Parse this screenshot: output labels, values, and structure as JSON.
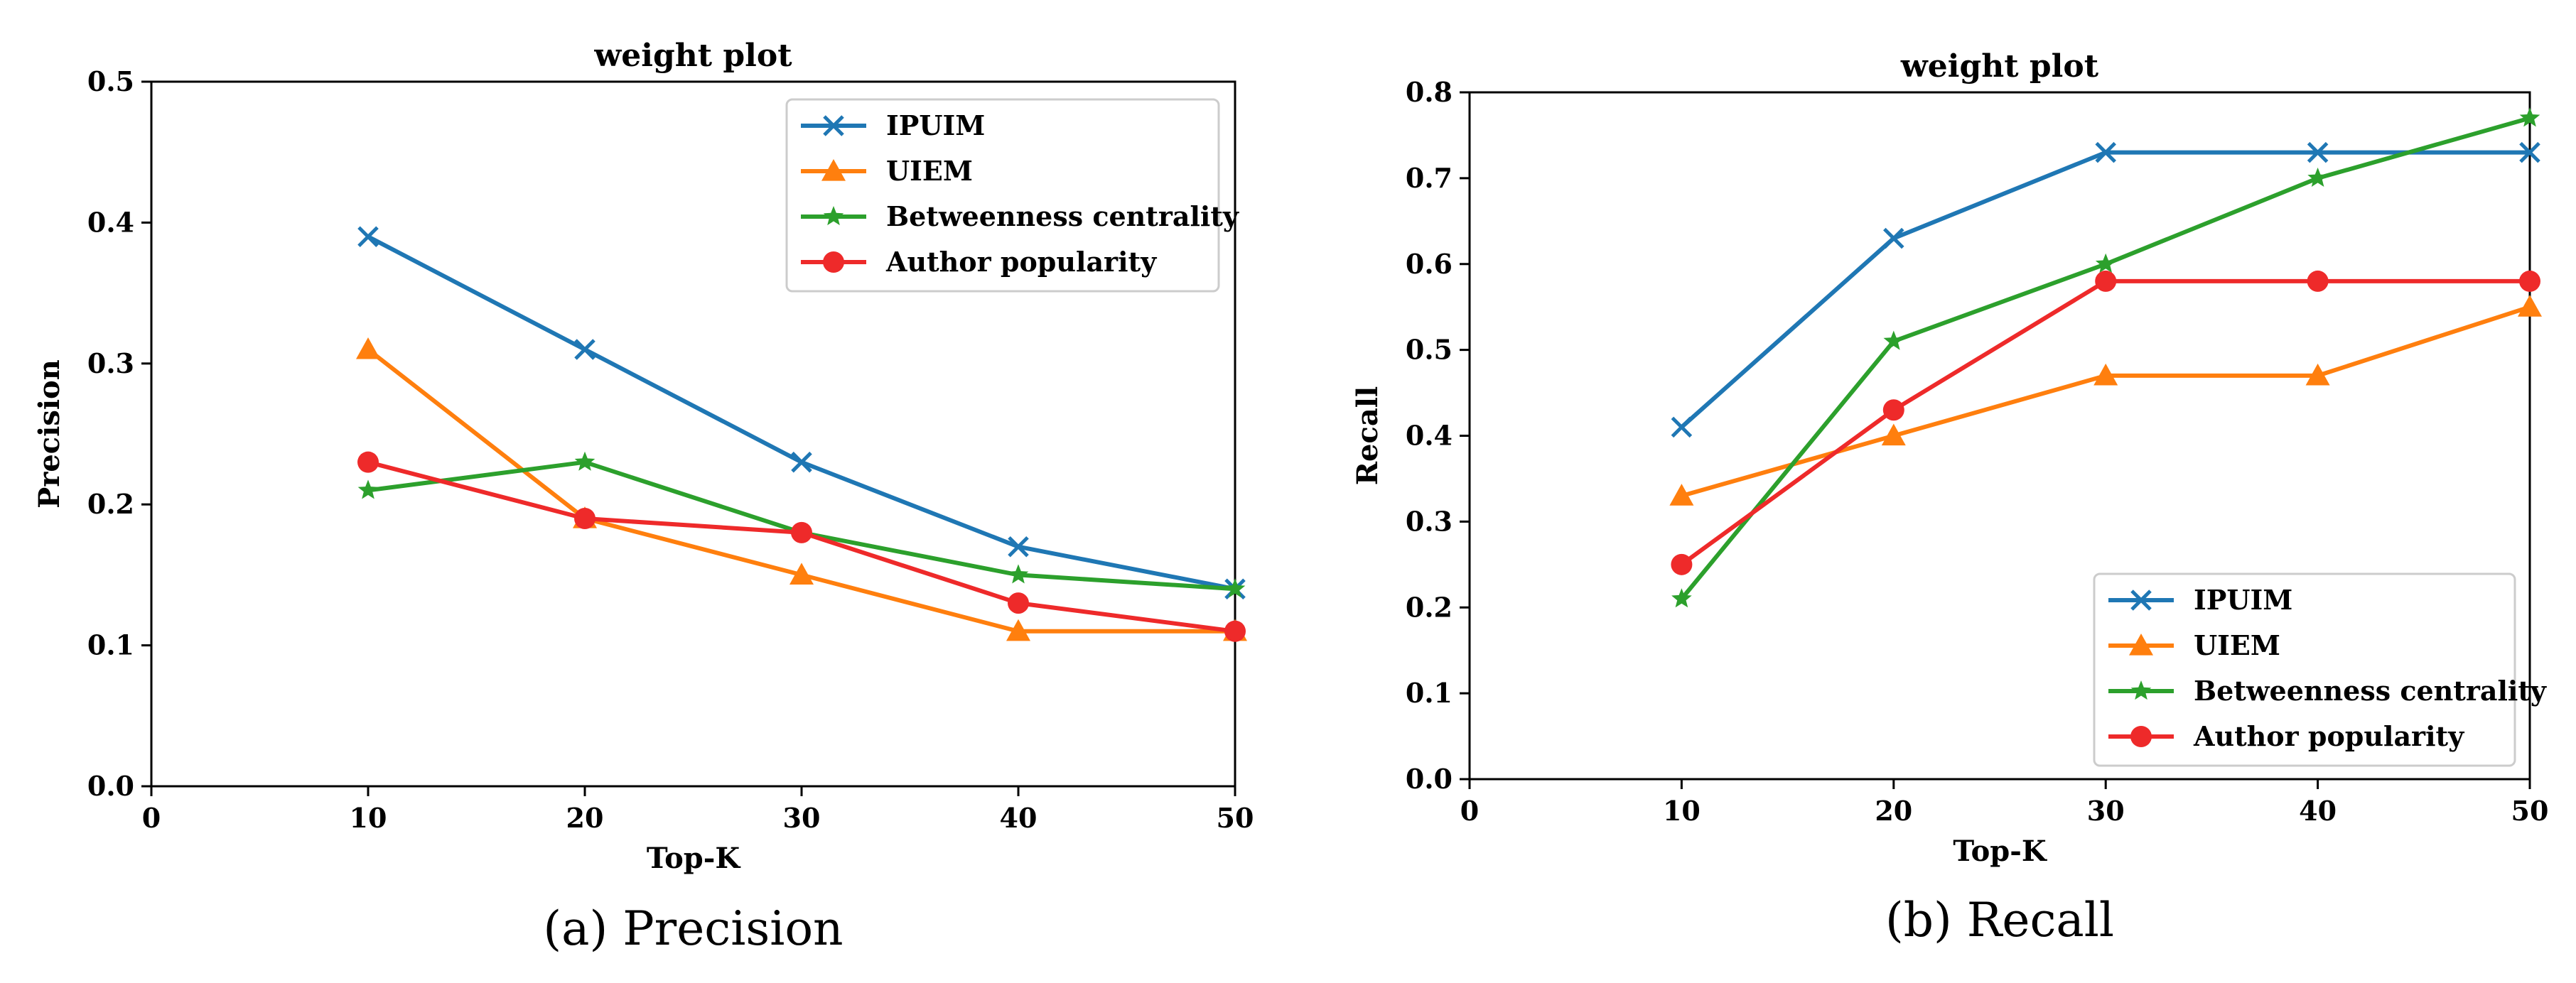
{
  "chart_data": [
    {
      "type": "line",
      "title": "weight plot",
      "xlabel": "Top-K",
      "ylabel": "Precision",
      "caption": "(a) Precision",
      "xlim": [
        0,
        50
      ],
      "ylim": [
        0,
        0.5
      ],
      "x_ticks": [
        0,
        10,
        20,
        30,
        40,
        50
      ],
      "y_ticks": [
        0.0,
        0.1,
        0.2,
        0.3,
        0.4,
        0.5
      ],
      "x_tick_labels": [
        "0",
        "10",
        "20",
        "30",
        "40",
        "50"
      ],
      "y_tick_labels": [
        "0.0",
        "0.1",
        "0.2",
        "0.3",
        "0.4",
        "0.5"
      ],
      "grid": false,
      "legend_position": "top-right",
      "x": [
        10,
        20,
        30,
        40,
        50
      ],
      "series": [
        {
          "name": "IPUIM",
          "values": [
            0.39,
            0.31,
            0.23,
            0.17,
            0.14
          ],
          "color": "#1f77b4",
          "marker": "x"
        },
        {
          "name": "UIEM",
          "values": [
            0.31,
            0.19,
            0.15,
            0.11,
            0.11
          ],
          "color": "#ff7f0e",
          "marker": "triangle"
        },
        {
          "name": "Betweenness centrality",
          "values": [
            0.21,
            0.23,
            0.18,
            0.15,
            0.14
          ],
          "color": "#2ca02c",
          "marker": "star"
        },
        {
          "name": "Author popularity",
          "values": [
            0.23,
            0.19,
            0.18,
            0.13,
            0.11
          ],
          "color": "#ee2a2a",
          "marker": "circle"
        }
      ]
    },
    {
      "type": "line",
      "title": "weight plot",
      "xlabel": "Top-K",
      "ylabel": "Recall",
      "caption": "(b) Recall",
      "xlim": [
        0,
        50
      ],
      "ylim": [
        0,
        0.8
      ],
      "x_ticks": [
        0,
        10,
        20,
        30,
        40,
        50
      ],
      "y_ticks": [
        0.0,
        0.1,
        0.2,
        0.3,
        0.4,
        0.5,
        0.6,
        0.7,
        0.8
      ],
      "x_tick_labels": [
        "0",
        "10",
        "20",
        "30",
        "40",
        "50"
      ],
      "y_tick_labels": [
        "0.0",
        "0.1",
        "0.2",
        "0.3",
        "0.4",
        "0.5",
        "0.6",
        "0.7",
        "0.8"
      ],
      "grid": false,
      "legend_position": "bottom-right",
      "x": [
        10,
        20,
        30,
        40,
        50
      ],
      "series": [
        {
          "name": "IPUIM",
          "values": [
            0.41,
            0.63,
            0.73,
            0.73,
            0.73
          ],
          "color": "#1f77b4",
          "marker": "x"
        },
        {
          "name": "UIEM",
          "values": [
            0.33,
            0.4,
            0.47,
            0.47,
            0.55
          ],
          "color": "#ff7f0e",
          "marker": "triangle"
        },
        {
          "name": "Betweenness centrality",
          "values": [
            0.21,
            0.51,
            0.6,
            0.7,
            0.77
          ],
          "color": "#2ca02c",
          "marker": "star"
        },
        {
          "name": "Author popularity",
          "values": [
            0.25,
            0.43,
            0.58,
            0.58,
            0.58
          ],
          "color": "#ee2a2a",
          "marker": "circle"
        }
      ]
    }
  ]
}
